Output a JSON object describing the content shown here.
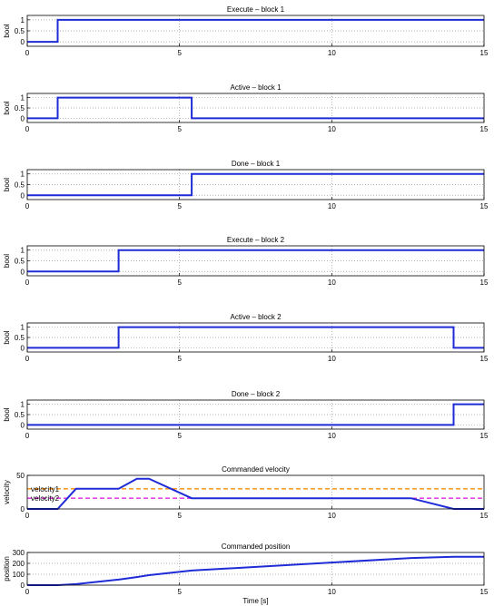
{
  "colors": {
    "signal": "#1f2bd6",
    "velocity1_ref": "#ff8c00",
    "velocity2_ref": "#e026e0",
    "axis": "#000000",
    "grid": "#9a9a9a"
  },
  "chart_data": [
    {
      "type": "line",
      "title": "Execute – block 1",
      "xlabel": "",
      "ylabel": "bool",
      "xlim": [
        0,
        15
      ],
      "ylim": [
        -0.2,
        1.2
      ],
      "xticks": [
        "0",
        "5",
        "10",
        "15"
      ],
      "yticks": [
        "0",
        "0.5",
        "1"
      ],
      "grid": true,
      "series": [
        {
          "x": [
            0,
            1,
            1,
            15
          ],
          "y": [
            0,
            0,
            1,
            1
          ]
        }
      ]
    },
    {
      "type": "line",
      "title": "Active – block 1",
      "xlabel": "",
      "ylabel": "bool",
      "xlim": [
        0,
        15
      ],
      "ylim": [
        -0.2,
        1.2
      ],
      "xticks": [
        "0",
        "5",
        "10",
        "15"
      ],
      "yticks": [
        "0",
        "0.5",
        "1"
      ],
      "grid": true,
      "series": [
        {
          "x": [
            0,
            1,
            1,
            5.4,
            5.4,
            15
          ],
          "y": [
            0,
            0,
            1,
            1,
            0,
            0
          ]
        }
      ]
    },
    {
      "type": "line",
      "title": "Done – block 1",
      "xlabel": "",
      "ylabel": "bool",
      "xlim": [
        0,
        15
      ],
      "ylim": [
        -0.2,
        1.2
      ],
      "xticks": [
        "0",
        "5",
        "10",
        "15"
      ],
      "yticks": [
        "0",
        "0.5",
        "1"
      ],
      "grid": true,
      "series": [
        {
          "x": [
            0,
            5.4,
            5.4,
            15
          ],
          "y": [
            0,
            0,
            1,
            1
          ]
        }
      ]
    },
    {
      "type": "line",
      "title": "Execute – block 2",
      "xlabel": "",
      "ylabel": "bool",
      "xlim": [
        0,
        15
      ],
      "ylim": [
        -0.2,
        1.2
      ],
      "xticks": [
        "0",
        "5",
        "10",
        "15"
      ],
      "yticks": [
        "0",
        "0.5",
        "1"
      ],
      "grid": true,
      "series": [
        {
          "x": [
            0,
            3,
            3,
            15
          ],
          "y": [
            0,
            0,
            1,
            1
          ]
        }
      ]
    },
    {
      "type": "line",
      "title": "Active – block 2",
      "xlabel": "",
      "ylabel": "bool",
      "xlim": [
        0,
        15
      ],
      "ylim": [
        -0.2,
        1.2
      ],
      "xticks": [
        "0",
        "5",
        "10",
        "15"
      ],
      "yticks": [
        "0",
        "0.5",
        "1"
      ],
      "grid": true,
      "series": [
        {
          "x": [
            0,
            3,
            3,
            14,
            14,
            15
          ],
          "y": [
            0,
            0,
            1,
            1,
            0,
            0
          ]
        }
      ]
    },
    {
      "type": "line",
      "title": "Done – block 2",
      "xlabel": "",
      "ylabel": "bool",
      "xlim": [
        0,
        15
      ],
      "ylim": [
        -0.2,
        1.2
      ],
      "xticks": [
        "0",
        "5",
        "10",
        "15"
      ],
      "yticks": [
        "0",
        "0.5",
        "1"
      ],
      "grid": true,
      "series": [
        {
          "x": [
            0,
            14,
            14,
            15
          ],
          "y": [
            0,
            0,
            1,
            1
          ]
        }
      ]
    },
    {
      "type": "line",
      "title": "Commanded velocity",
      "xlabel": "",
      "ylabel": "velocity",
      "xlim": [
        0,
        15
      ],
      "ylim": [
        0,
        50
      ],
      "xticks": [
        "0",
        "5",
        "10",
        "15"
      ],
      "yticks": [
        "0",
        "50"
      ],
      "grid": true,
      "series": [
        {
          "x": [
            0,
            1,
            1.6,
            3,
            3.6,
            4,
            5.4,
            12.6,
            14,
            15
          ],
          "y": [
            0,
            0,
            30,
            30,
            45,
            45,
            16,
            16,
            0,
            0
          ]
        }
      ],
      "reference_lines": [
        {
          "label": "velocity1",
          "y": 30,
          "style": "dashed",
          "color": "#ff8c00"
        },
        {
          "label": "velocity2",
          "y": 16,
          "style": "dashed",
          "color": "#e026e0"
        }
      ]
    },
    {
      "type": "line",
      "title": "Commanded position",
      "xlabel": "Time [s]",
      "ylabel": "position",
      "xlim": [
        0,
        15
      ],
      "ylim": [
        0,
        300
      ],
      "xticks": [
        "0",
        "5",
        "10",
        "15"
      ],
      "yticks": [
        "0",
        "100",
        "200",
        "300"
      ],
      "grid": true,
      "series": [
        {
          "x": [
            0,
            1,
            1.6,
            3,
            3.6,
            4,
            5.4,
            12.6,
            14,
            15
          ],
          "y": [
            0,
            0,
            9,
            51,
            74,
            92,
            134,
            249,
            260,
            260
          ]
        }
      ]
    }
  ]
}
